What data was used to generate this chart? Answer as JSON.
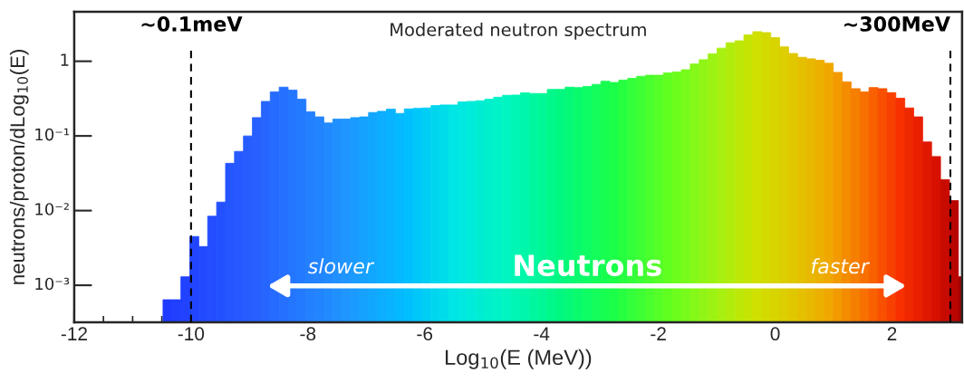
{
  "chart_data": {
    "type": "histogram",
    "title": "Moderated neutron spectrum",
    "xlabel": "Log$_{10}$(E (MeV))",
    "ylabel": "neutrons/proton/dLog$_{10}$(E)",
    "bins": [
      -10.48,
      -10.327,
      -10.174,
      -10.021,
      -9.868,
      -9.715,
      -9.562,
      -9.409,
      -9.256,
      -9.103,
      -8.95,
      -8.797,
      -8.644,
      -8.491,
      -8.338,
      -8.185,
      -8.032,
      -7.879,
      -7.726,
      -7.573,
      -7.42,
      -7.267,
      -7.114,
      -6.961,
      -6.808,
      -6.655,
      -6.502,
      -6.349,
      -6.196,
      -6.043,
      -5.89,
      -5.737,
      -5.584,
      -5.431,
      -5.278,
      -5.125,
      -4.972,
      -4.819,
      -4.666,
      -4.513,
      -4.36,
      -4.207,
      -4.054,
      -3.901,
      -3.748,
      -3.595,
      -3.442,
      -3.289,
      -3.136,
      -2.983,
      -2.83,
      -2.677,
      -2.524,
      -2.371,
      -2.218,
      -2.065,
      -1.912,
      -1.759,
      -1.606,
      -1.453,
      -1.3,
      -1.147,
      -0.994,
      -0.841,
      -0.688,
      -0.535,
      -0.382,
      -0.229,
      -0.076,
      0.077,
      0.23,
      0.383,
      0.536,
      0.689,
      0.842,
      0.995,
      1.148,
      1.301,
      1.454,
      1.607,
      1.76,
      1.913,
      2.066,
      2.219,
      2.372,
      2.525,
      2.678,
      2.831,
      2.984,
      3.137,
      3.2
    ],
    "values": [
      0.00064,
      0.00064,
      0.0013,
      0.0045,
      0.0033,
      0.0084,
      0.013,
      0.043,
      0.062,
      0.1,
      0.176,
      0.29,
      0.39,
      0.45,
      0.41,
      0.31,
      0.21,
      0.18,
      0.149,
      0.168,
      0.168,
      0.176,
      0.18,
      0.206,
      0.214,
      0.228,
      0.2,
      0.23,
      0.234,
      0.237,
      0.255,
      0.26,
      0.26,
      0.285,
      0.29,
      0.296,
      0.31,
      0.33,
      0.35,
      0.353,
      0.377,
      0.37,
      0.37,
      0.42,
      0.42,
      0.45,
      0.445,
      0.46,
      0.49,
      0.54,
      0.52,
      0.56,
      0.59,
      0.63,
      0.65,
      0.65,
      0.7,
      0.72,
      0.77,
      0.92,
      1.05,
      1.26,
      1.5,
      1.77,
      1.88,
      2.25,
      2.49,
      2.42,
      2.07,
      1.56,
      1.27,
      1.13,
      1.08,
      1.03,
      0.94,
      0.71,
      0.53,
      0.43,
      0.39,
      0.445,
      0.43,
      0.38,
      0.32,
      0.237,
      0.18,
      0.083,
      0.053,
      0.026,
      0.0136,
      0.0013
    ],
    "colors": [
      "#1f3bff",
      "#203fff",
      "#2142ff",
      "#2246ff",
      "#234aff",
      "#234dff",
      "#2451ff",
      "#2555ff",
      "#2659ff",
      "#275cff",
      "#2860ff",
      "#2765ff",
      "#266bff",
      "#2570ff",
      "#2475ff",
      "#237aff",
      "#2380ff",
      "#2285ff",
      "#218aff",
      "#2090ff",
      "#1f95ff",
      "#1b9bff",
      "#16a1ff",
      "#12a7ff",
      "#0dadff",
      "#09b3ff",
      "#04b9ff",
      "#00bfff",
      "#00c7fa",
      "#00cef5",
      "#00d6ef",
      "#00ddea",
      "#00e5e5",
      "#00e8e0",
      "#00ebda",
      "#00edd3",
      "#00f0cd",
      "#00f3c6",
      "#00f5c0",
      "#00f6b5",
      "#00f6ab",
      "#00f7a0",
      "#00f795",
      "#00f88b",
      "#00f880",
      "#05f977",
      "#09fa6d",
      "#0efc64",
      "#13fd5b",
      "#17fe51",
      "#1cff48",
      "#27ff41",
      "#33ff3b",
      "#3eff34",
      "#49ff2d",
      "#55ff27",
      "#60ff20",
      "#6cfd1d",
      "#78fa1b",
      "#84f818",
      "#90f515",
      "#9cf313",
      "#a8f010",
      "#b2ec0c",
      "#bce808",
      "#c6e404",
      "#d0e000",
      "#d4da00",
      "#d8d400",
      "#dcce00",
      "#e0c800",
      "#e4c000",
      "#e8b800",
      "#ecb000",
      "#f0a800",
      "#f29a00",
      "#f48c00",
      "#f67e00",
      "#f87000",
      "#f86000",
      "#f85000",
      "#f84000",
      "#f83000",
      "#f02800",
      "#e82000",
      "#e01800",
      "#d81000",
      "#c80b00",
      "#b80500",
      "#a80000"
    ],
    "log": "y",
    "xlim": [
      -12,
      3.2
    ],
    "xticks": [
      {
        "value": -12,
        "label": "-12"
      },
      {
        "value": -10,
        "label": "-10"
      },
      {
        "value": -8,
        "label": "-8"
      },
      {
        "value": -6,
        "label": "-6"
      },
      {
        "value": -4,
        "label": "-4"
      },
      {
        "value": -2,
        "label": "-2"
      },
      0,
      2
    ],
    "ylim": [
      0.00032,
      4.6
    ],
    "yticks": [
      {
        "value": 0.001,
        "label": "10⁻³"
      },
      {
        "value": 0.01,
        "label": "10⁻²"
      },
      {
        "value": 0.1,
        "label": "10⁻¹"
      },
      1
    ],
    "ref_lines": [
      {
        "axis": "x",
        "value": -10,
        "label": "~0.1meV",
        "color": "#000000",
        "line_style": "dashed"
      },
      {
        "axis": "x",
        "value": 3,
        "label": "~300MeV",
        "color": "#000000",
        "line_style": "dashed"
      }
    ],
    "annotations": [
      "slower",
      "Neutrons",
      "faster"
    ],
    "grid": false,
    "legend": false
  }
}
